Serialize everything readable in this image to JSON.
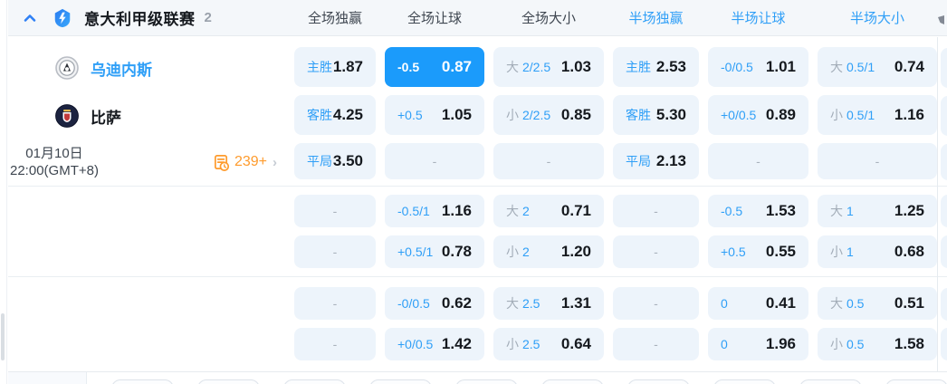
{
  "header": {
    "league": "意大利甲级联赛",
    "match_count": "2",
    "columns": [
      {
        "label": "全场独赢",
        "tone": "dark"
      },
      {
        "label": "全场让球",
        "tone": "dark"
      },
      {
        "label": "全场大小",
        "tone": "dark"
      },
      {
        "label": "半场独赢",
        "tone": "blue"
      },
      {
        "label": "半场让球",
        "tone": "blue"
      },
      {
        "label": "半场大小",
        "tone": "blue"
      }
    ]
  },
  "match": {
    "home_team": "乌迪内斯",
    "away_team": "比萨",
    "date": "01月10日",
    "time": "22:00(GMT+8)",
    "more_markets": "239+",
    "dash": "-"
  },
  "colors": {
    "accent_blue": "#2f9ff7",
    "highlight_cell": "#1b9bfb",
    "cell_bg": "#edf4fb",
    "orange": "#fe9b2d",
    "value_text": "#15191e",
    "prefix_gray": "#a3adb8"
  },
  "odds": {
    "groups": [
      {
        "rows": [
          [
            {
              "l": "主胜",
              "v": "1.87"
            },
            {
              "l": "-0.5",
              "v": "0.87",
              "hl": true
            },
            {
              "p": "大",
              "l": "2/2.5",
              "v": "1.03"
            },
            {
              "l": "主胜",
              "v": "2.53"
            },
            {
              "l": "-0/0.5",
              "v": "1.01"
            },
            {
              "p": "大",
              "l": "0.5/1",
              "v": "0.74"
            }
          ],
          [
            {
              "l": "客胜",
              "v": "4.25"
            },
            {
              "l": "+0.5",
              "v": "1.05"
            },
            {
              "p": "小",
              "l": "2/2.5",
              "v": "0.85"
            },
            {
              "l": "客胜",
              "v": "5.30"
            },
            {
              "l": "+0/0.5",
              "v": "0.89"
            },
            {
              "p": "小",
              "l": "0.5/1",
              "v": "1.16"
            }
          ],
          [
            {
              "l": "平局",
              "v": "3.50"
            },
            {
              "dash": true
            },
            {
              "dash": true
            },
            {
              "l": "平局",
              "v": "2.13"
            },
            {
              "dash": true
            },
            {
              "dash": true
            }
          ]
        ]
      },
      {
        "rows": [
          [
            {
              "dash": true
            },
            {
              "l": "-0.5/1",
              "v": "1.16"
            },
            {
              "p": "大",
              "l": "2",
              "v": "0.71"
            },
            {
              "dash": true
            },
            {
              "l": "-0.5",
              "v": "1.53"
            },
            {
              "p": "大",
              "l": "1",
              "v": "1.25"
            }
          ],
          [
            {
              "dash": true
            },
            {
              "l": "+0.5/1",
              "v": "0.78"
            },
            {
              "p": "小",
              "l": "2",
              "v": "1.20"
            },
            {
              "dash": true
            },
            {
              "l": "+0.5",
              "v": "0.55"
            },
            {
              "p": "小",
              "l": "1",
              "v": "0.68"
            }
          ]
        ]
      },
      {
        "rows": [
          [
            {
              "dash": true
            },
            {
              "l": "-0/0.5",
              "v": "0.62"
            },
            {
              "p": "大",
              "l": "2.5",
              "v": "1.31"
            },
            {
              "dash": true
            },
            {
              "l": "0",
              "v": "0.41"
            },
            {
              "p": "大",
              "l": "0.5",
              "v": "0.51"
            }
          ],
          [
            {
              "dash": true
            },
            {
              "l": "+0/0.5",
              "v": "1.42"
            },
            {
              "p": "小",
              "l": "2.5",
              "v": "0.64"
            },
            {
              "dash": true
            },
            {
              "l": "0",
              "v": "1.96"
            },
            {
              "p": "小",
              "l": "0.5",
              "v": "1.58"
            }
          ]
        ]
      }
    ]
  },
  "footer": {
    "pill_count": 10
  }
}
